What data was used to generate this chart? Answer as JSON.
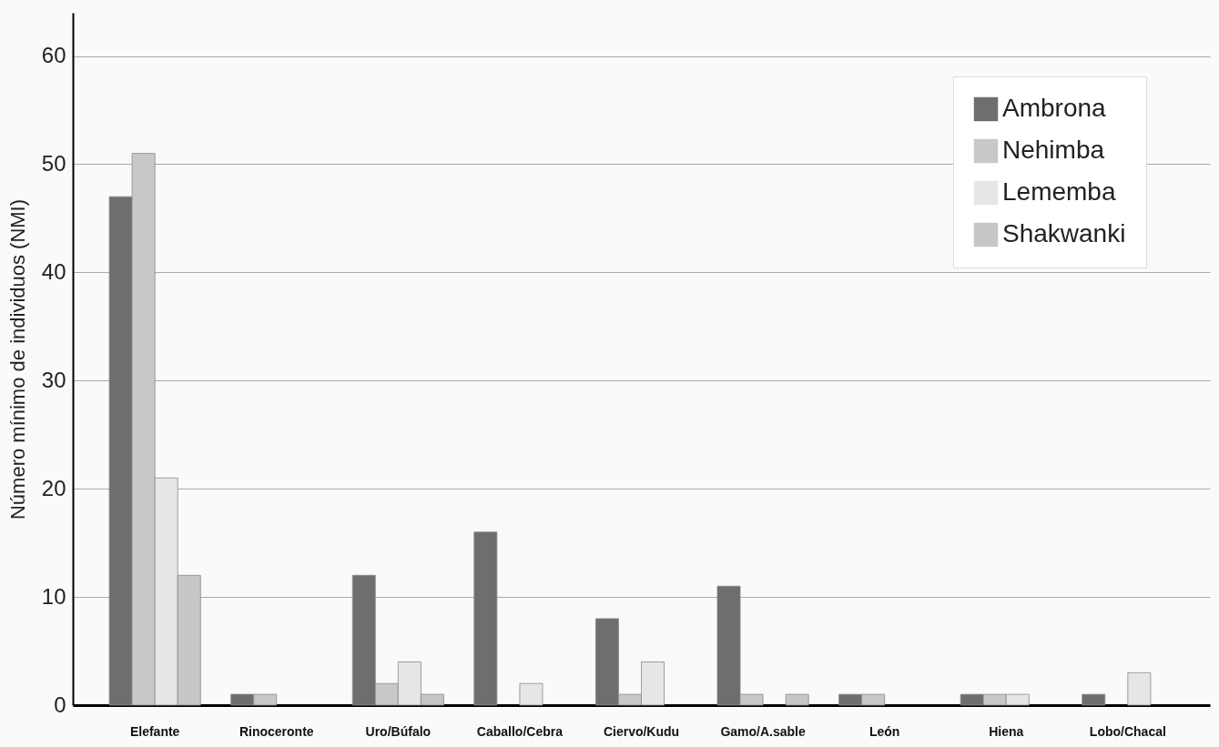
{
  "chart_data": {
    "type": "bar",
    "ylabel": "Número mínimo de individuos (NMI)",
    "categories": [
      "Elefante",
      "Rinoceronte",
      "Uro/Búfalo",
      "Caballo/Cebra",
      "Ciervo/Kudu",
      "Gamo/A.sable",
      "León",
      "Hiena",
      "Lobo/Chacal"
    ],
    "series": [
      {
        "name": "Ambrona",
        "color": "#6e6e6e",
        "values": [
          47,
          1,
          12,
          16,
          8,
          11,
          1,
          1,
          1
        ]
      },
      {
        "name": "Nehimba",
        "color": "#c8c8c8",
        "values": [
          51,
          1,
          2,
          null,
          1,
          1,
          1,
          1,
          null
        ]
      },
      {
        "name": "Lememba",
        "color": "#e6e6e6",
        "values": [
          21,
          null,
          4,
          2,
          4,
          null,
          null,
          1,
          3
        ]
      },
      {
        "name": "Shakwanki",
        "color": "#c6c6c6",
        "values": [
          12,
          null,
          1,
          null,
          null,
          1,
          null,
          null,
          null
        ]
      }
    ],
    "ylim": [
      0,
      64
    ],
    "yticks": [
      0,
      10,
      20,
      30,
      40,
      50,
      60
    ],
    "grid": "y",
    "legend": "top right"
  }
}
